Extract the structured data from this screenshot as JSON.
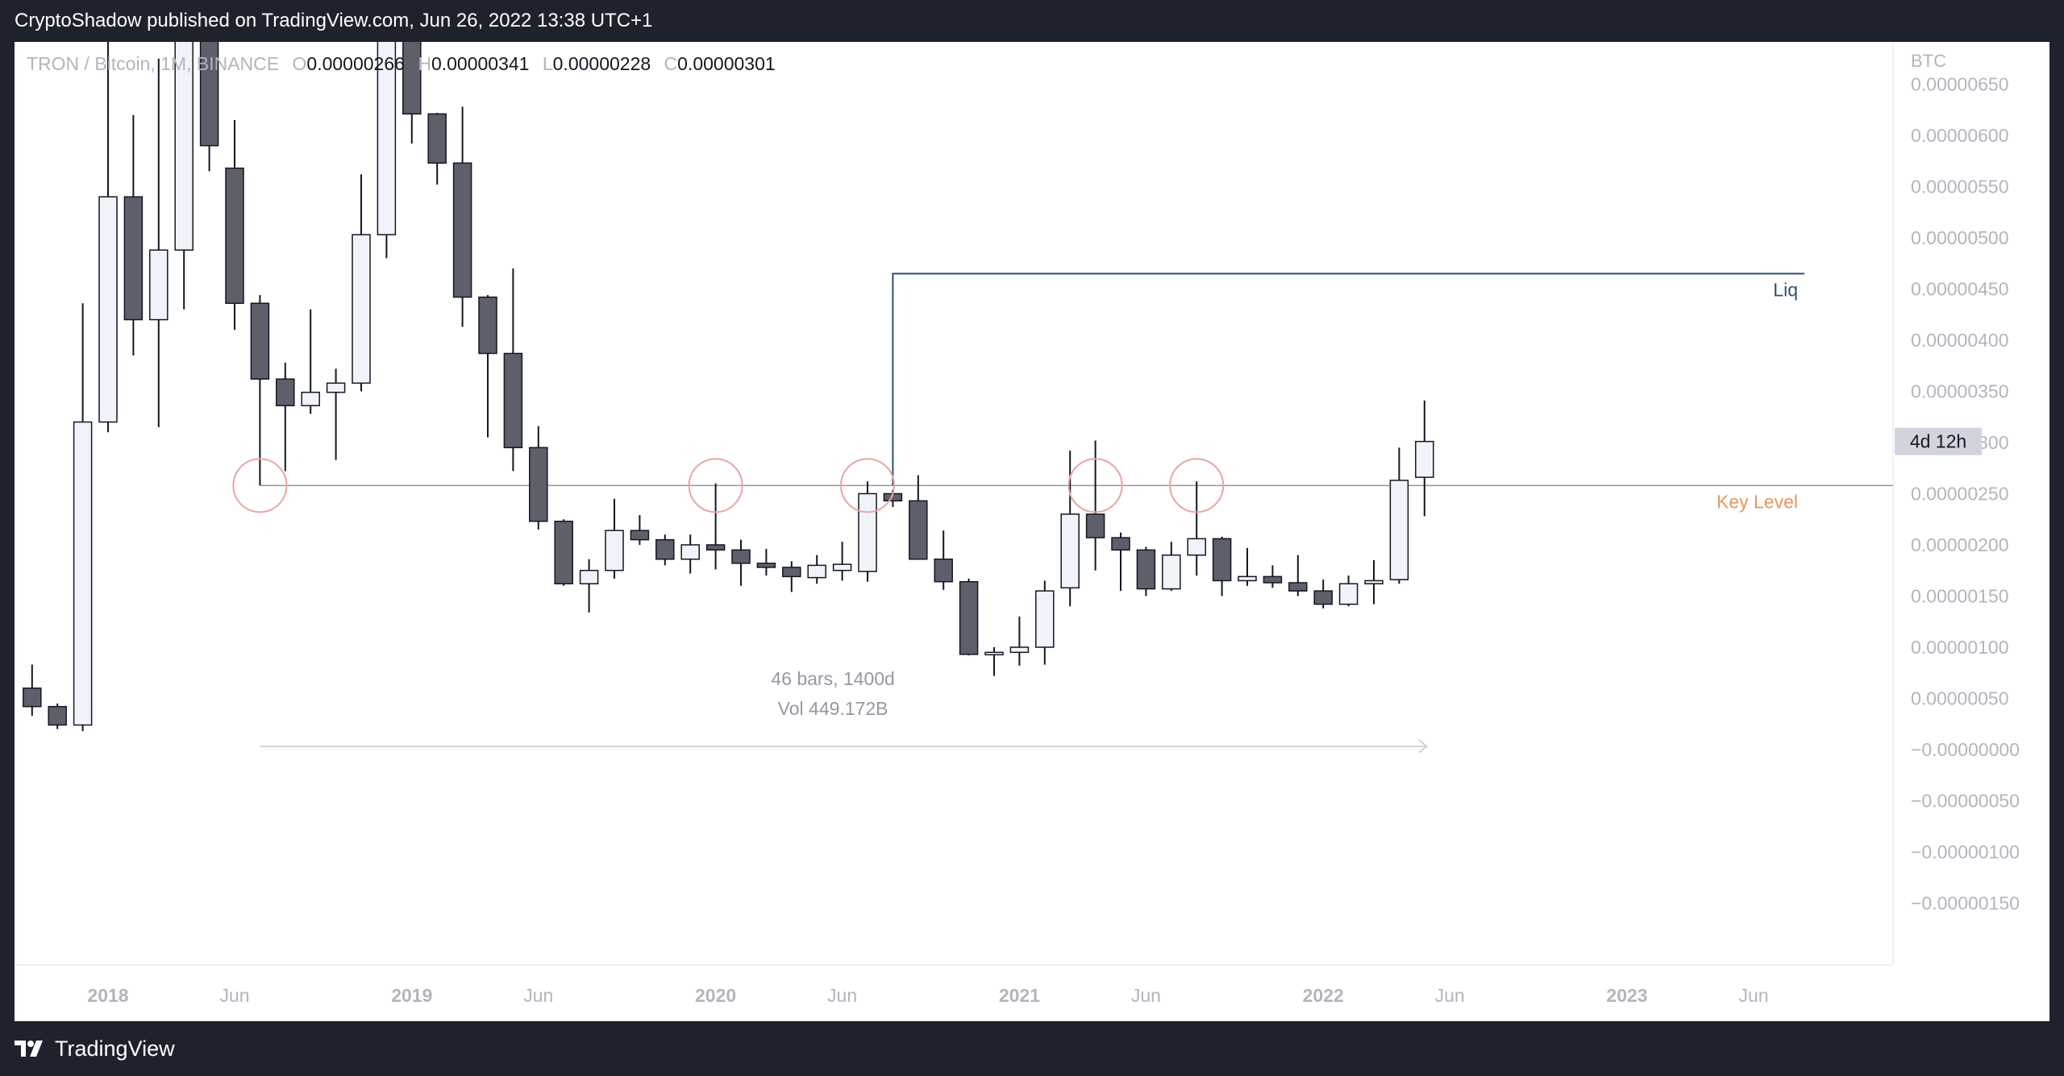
{
  "header": {
    "publisher": "CryptoShadow published on TradingView.com, Jun 26, 2022 13:38 UTC+1"
  },
  "legend": {
    "symbol": "TRON / Bitcoin, 1M, BINANCE",
    "o_label": "O",
    "o_value": "0.00000266",
    "h_label": "H",
    "h_value": "0.00000341",
    "l_label": "L",
    "l_value": "0.00000228",
    "c_label": "C",
    "c_value": "0.00000301"
  },
  "footer": {
    "brand": "TradingView"
  },
  "colors": {
    "bull": "#f0f3fa",
    "bear": "#5d606b",
    "wick": "#131722",
    "liq": "#2e4f6e",
    "key_level": "#e6975e",
    "circle": "#e8a5a5",
    "frame": "#1e222d"
  },
  "chart_data": {
    "type": "candlestick",
    "interval": "1M",
    "currency_label": "BTC",
    "y_ticks": [
      "0.00000650",
      "0.00000600",
      "0.00000550",
      "0.00000500",
      "0.00000450",
      "0.00000400",
      "0.00000350",
      "0.00000300",
      "0.00000250",
      "0.00000200",
      "0.00000150",
      "0.00000100",
      "0.00000050",
      "−0.00000000",
      "−0.00000050",
      "−0.00000100",
      "−0.00000150"
    ],
    "ylim": [
      -2e-06,
      7e-06
    ],
    "x_ticks": [
      {
        "label": "2018",
        "date": "2018-01",
        "bold": true
      },
      {
        "label": "Jun",
        "date": "2018-06",
        "bold": false
      },
      {
        "label": "2019",
        "date": "2019-01",
        "bold": true
      },
      {
        "label": "Jun",
        "date": "2019-06",
        "bold": false
      },
      {
        "label": "2020",
        "date": "2020-01",
        "bold": true
      },
      {
        "label": "Jun",
        "date": "2020-06",
        "bold": false
      },
      {
        "label": "2021",
        "date": "2021-01",
        "bold": true
      },
      {
        "label": "Jun",
        "date": "2021-06",
        "bold": false
      },
      {
        "label": "2022",
        "date": "2022-01",
        "bold": true
      },
      {
        "label": "Jun",
        "date": "2022-06",
        "bold": false
      },
      {
        "label": "2023",
        "date": "2023-01",
        "bold": true
      },
      {
        "label": "Jun",
        "date": "2023-06",
        "bold": false
      }
    ],
    "candles": [
      {
        "d": "2017-10",
        "o": 6e-07,
        "h": 8.3e-07,
        "l": 3.3e-07,
        "c": 4.2e-07
      },
      {
        "d": "2017-11",
        "o": 4.2e-07,
        "h": 4.5e-07,
        "l": 2e-07,
        "c": 2.4e-07
      },
      {
        "d": "2017-12",
        "o": 2.4e-07,
        "h": 4.36e-06,
        "l": 1.8e-07,
        "c": 3.2e-06
      },
      {
        "d": "2018-01",
        "o": 3.2e-06,
        "h": 9e-06,
        "l": 3.1e-06,
        "c": 5.4e-06
      },
      {
        "d": "2018-02",
        "o": 5.4e-06,
        "h": 6.2e-06,
        "l": 3.85e-06,
        "c": 4.2e-06
      },
      {
        "d": "2018-03",
        "o": 4.2e-06,
        "h": 6.75e-06,
        "l": 3.15e-06,
        "c": 4.88e-06
      },
      {
        "d": "2018-04",
        "o": 4.88e-06,
        "h": 9e-06,
        "l": 4.3e-06,
        "c": 9e-06
      },
      {
        "d": "2018-05",
        "o": 9e-06,
        "h": 9e-06,
        "l": 5.65e-06,
        "c": 5.9e-06
      },
      {
        "d": "2018-06",
        "o": 5.68e-06,
        "h": 6.15e-06,
        "l": 4.1e-06,
        "c": 4.36e-06
      },
      {
        "d": "2018-07",
        "o": 4.36e-06,
        "h": 4.44e-06,
        "l": 2.58e-06,
        "c": 3.62e-06
      },
      {
        "d": "2018-08",
        "o": 3.62e-06,
        "h": 3.78e-06,
        "l": 2.72e-06,
        "c": 3.36e-06
      },
      {
        "d": "2018-09",
        "o": 3.36e-06,
        "h": 4.3e-06,
        "l": 3.28e-06,
        "c": 3.49e-06
      },
      {
        "d": "2018-10",
        "o": 3.49e-06,
        "h": 3.72e-06,
        "l": 2.83e-06,
        "c": 3.58e-06
      },
      {
        "d": "2018-11",
        "o": 3.58e-06,
        "h": 5.62e-06,
        "l": 3.5e-06,
        "c": 5.03e-06
      },
      {
        "d": "2018-12",
        "o": 5.03e-06,
        "h": 9e-06,
        "l": 4.8e-06,
        "c": 9e-06
      },
      {
        "d": "2019-01",
        "o": 9e-06,
        "h": 9e-06,
        "l": 5.92e-06,
        "c": 6.21e-06
      },
      {
        "d": "2019-02",
        "o": 6.21e-06,
        "h": 6.22e-06,
        "l": 5.52e-06,
        "c": 5.73e-06
      },
      {
        "d": "2019-03",
        "o": 5.73e-06,
        "h": 6.28e-06,
        "l": 4.13e-06,
        "c": 4.42e-06
      },
      {
        "d": "2019-04",
        "o": 4.42e-06,
        "h": 4.44e-06,
        "l": 3.05e-06,
        "c": 3.87e-06
      },
      {
        "d": "2019-05",
        "o": 3.87e-06,
        "h": 4.7e-06,
        "l": 2.72e-06,
        "c": 2.95e-06
      },
      {
        "d": "2019-06",
        "o": 2.95e-06,
        "h": 3.16e-06,
        "l": 2.15e-06,
        "c": 2.23e-06
      },
      {
        "d": "2019-07",
        "o": 2.23e-06,
        "h": 2.25e-06,
        "l": 1.6e-06,
        "c": 1.62e-06
      },
      {
        "d": "2019-08",
        "o": 1.62e-06,
        "h": 1.86e-06,
        "l": 1.34e-06,
        "c": 1.75e-06
      },
      {
        "d": "2019-09",
        "o": 1.75e-06,
        "h": 2.45e-06,
        "l": 1.67e-06,
        "c": 2.14e-06
      },
      {
        "d": "2019-10",
        "o": 2.14e-06,
        "h": 2.29e-06,
        "l": 2e-06,
        "c": 2.05e-06
      },
      {
        "d": "2019-11",
        "o": 2.05e-06,
        "h": 2.1e-06,
        "l": 1.8e-06,
        "c": 1.86e-06
      },
      {
        "d": "2019-12",
        "o": 1.86e-06,
        "h": 2.1e-06,
        "l": 1.72e-06,
        "c": 2e-06
      },
      {
        "d": "2020-01",
        "o": 2e-06,
        "h": 2.6e-06,
        "l": 1.76e-06,
        "c": 1.95e-06
      },
      {
        "d": "2020-02",
        "o": 1.95e-06,
        "h": 2.05e-06,
        "l": 1.6e-06,
        "c": 1.82e-06
      },
      {
        "d": "2020-03",
        "o": 1.82e-06,
        "h": 1.96e-06,
        "l": 1.7e-06,
        "c": 1.78e-06
      },
      {
        "d": "2020-04",
        "o": 1.78e-06,
        "h": 1.84e-06,
        "l": 1.54e-06,
        "c": 1.69e-06
      },
      {
        "d": "2020-05",
        "o": 1.68e-06,
        "h": 1.9e-06,
        "l": 1.62e-06,
        "c": 1.8e-06
      },
      {
        "d": "2020-06",
        "o": 1.75e-06,
        "h": 2.03e-06,
        "l": 1.65e-06,
        "c": 1.81e-06
      },
      {
        "d": "2020-07",
        "o": 1.74e-06,
        "h": 2.62e-06,
        "l": 1.64e-06,
        "c": 2.5e-06
      },
      {
        "d": "2020-08",
        "o": 2.5e-06,
        "h": 2.54e-06,
        "l": 2.37e-06,
        "c": 2.43e-06
      },
      {
        "d": "2020-09",
        "o": 2.43e-06,
        "h": 2.68e-06,
        "l": 1.86e-06,
        "c": 1.86e-06
      },
      {
        "d": "2020-10",
        "o": 1.86e-06,
        "h": 2.14e-06,
        "l": 1.56e-06,
        "c": 1.64e-06
      },
      {
        "d": "2020-11",
        "o": 1.64e-06,
        "h": 1.67e-06,
        "l": 9.2e-07,
        "c": 9.3e-07
      },
      {
        "d": "2020-12",
        "o": 9.3e-07,
        "h": 1e-06,
        "l": 7.2e-07,
        "c": 9.5e-07
      },
      {
        "d": "2021-01",
        "o": 9.5e-07,
        "h": 1.3e-06,
        "l": 8.2e-07,
        "c": 1e-06
      },
      {
        "d": "2021-02",
        "o": 1e-06,
        "h": 1.65e-06,
        "l": 8.3e-07,
        "c": 1.55e-06
      },
      {
        "d": "2021-03",
        "o": 1.58e-06,
        "h": 2.92e-06,
        "l": 1.4e-06,
        "c": 2.3e-06
      },
      {
        "d": "2021-04",
        "o": 2.3e-06,
        "h": 3.02e-06,
        "l": 1.75e-06,
        "c": 2.07e-06
      },
      {
        "d": "2021-05",
        "o": 2.07e-06,
        "h": 2.12e-06,
        "l": 1.55e-06,
        "c": 1.95e-06
      },
      {
        "d": "2021-06",
        "o": 1.95e-06,
        "h": 1.98e-06,
        "l": 1.5e-06,
        "c": 1.57e-06
      },
      {
        "d": "2021-07",
        "o": 1.57e-06,
        "h": 2.03e-06,
        "l": 1.55e-06,
        "c": 1.9e-06
      },
      {
        "d": "2021-08",
        "o": 1.9e-06,
        "h": 2.62e-06,
        "l": 1.7e-06,
        "c": 2.06e-06
      },
      {
        "d": "2021-09",
        "o": 2.06e-06,
        "h": 2.08e-06,
        "l": 1.5e-06,
        "c": 1.65e-06
      },
      {
        "d": "2021-10",
        "o": 1.65e-06,
        "h": 1.97e-06,
        "l": 1.6e-06,
        "c": 1.69e-06
      },
      {
        "d": "2021-11",
        "o": 1.69e-06,
        "h": 1.8e-06,
        "l": 1.58e-06,
        "c": 1.63e-06
      },
      {
        "d": "2021-12",
        "o": 1.63e-06,
        "h": 1.9e-06,
        "l": 1.5e-06,
        "c": 1.55e-06
      },
      {
        "d": "2022-01",
        "o": 1.55e-06,
        "h": 1.66e-06,
        "l": 1.38e-06,
        "c": 1.42e-06
      },
      {
        "d": "2022-02",
        "o": 1.42e-06,
        "h": 1.7e-06,
        "l": 1.4e-06,
        "c": 1.62e-06
      },
      {
        "d": "2022-03",
        "o": 1.62e-06,
        "h": 1.85e-06,
        "l": 1.42e-06,
        "c": 1.65e-06
      },
      {
        "d": "2022-04",
        "o": 1.66e-06,
        "h": 2.95e-06,
        "l": 1.62e-06,
        "c": 2.63e-06
      },
      {
        "d": "2022-05",
        "o": 2.66e-06,
        "h": 3.41e-06,
        "l": 2.28e-06,
        "c": 3.01e-06
      }
    ],
    "key_level": {
      "label": "Key Level",
      "value": 2.58e-06,
      "from": "2018-07",
      "to": "2023-09"
    },
    "liq_line": {
      "label": "Liq",
      "value": 4.65e-06,
      "from": "2020-08",
      "to": "2023-09"
    },
    "circles": [
      {
        "d": "2018-07",
        "value": 2.58e-06
      },
      {
        "d": "2020-01",
        "value": 2.58e-06
      },
      {
        "d": "2020-07",
        "value": 2.58e-06
      },
      {
        "d": "2021-04",
        "value": 2.58e-06
      },
      {
        "d": "2021-08",
        "value": 2.58e-06
      }
    ],
    "measure": {
      "from": "2018-07",
      "to": "2022-05",
      "value": -0.0,
      "bars_text": "46 bars, 1400d",
      "vol_text": "Vol 449.172B"
    },
    "countdown": {
      "text": "4d 12h",
      "value": 3.01e-06
    }
  }
}
